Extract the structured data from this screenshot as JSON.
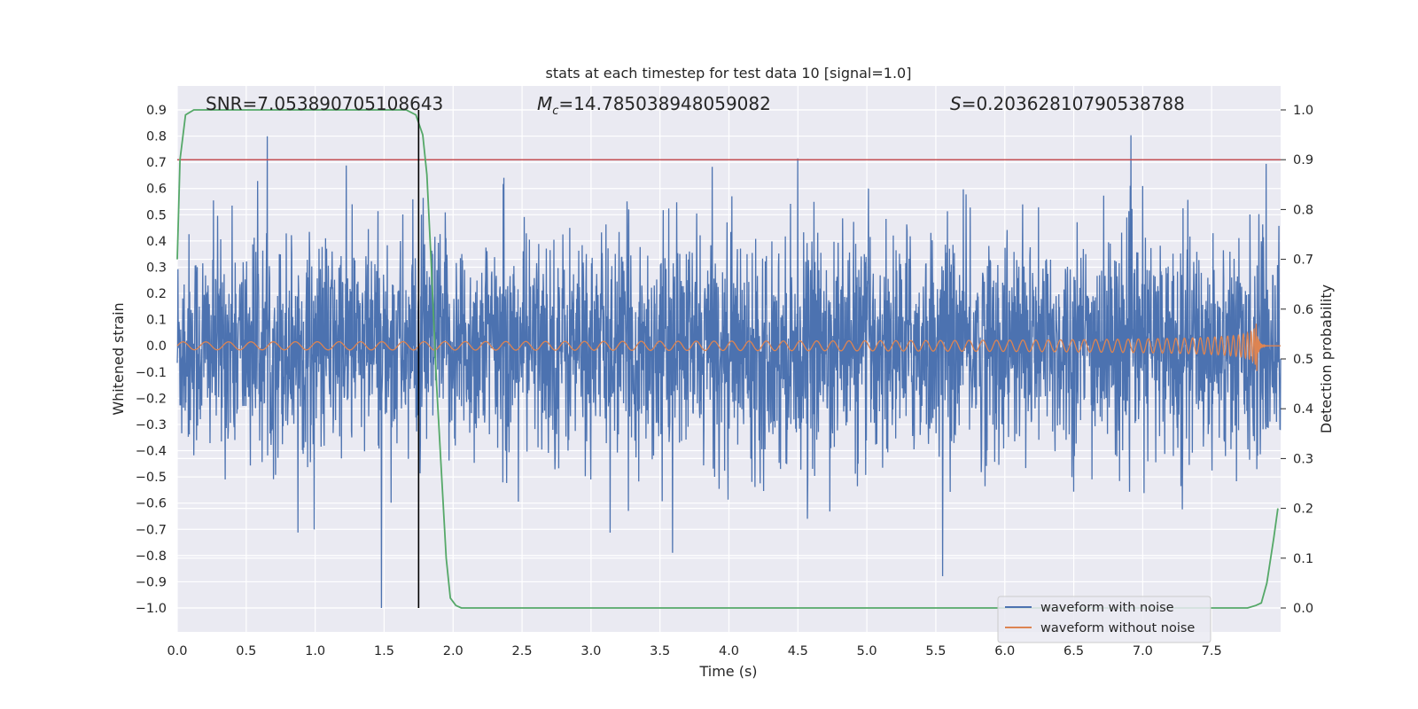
{
  "chart_data": {
    "type": "line",
    "title": "stats at each timestep for test data 10 [signal=1.0]",
    "xlabel": "Time (s)",
    "ylabel": "Whitened strain",
    "y2label": "Detection probability",
    "xlim": [
      0.0,
      8.0
    ],
    "ylim": [
      -1.0,
      0.9
    ],
    "y2lim": [
      0.0,
      1.0
    ],
    "x_ticks": [
      "0.0",
      "0.5",
      "1.0",
      "1.5",
      "2.0",
      "2.5",
      "3.0",
      "3.5",
      "4.0",
      "4.5",
      "5.0",
      "5.5",
      "6.0",
      "6.5",
      "7.0",
      "7.5"
    ],
    "y_ticks": [
      "−1.0",
      "−0.9",
      "−0.8",
      "−0.7",
      "−0.6",
      "−0.5",
      "−0.4",
      "−0.3",
      "−0.2",
      "−0.1",
      "0.0",
      "0.1",
      "0.2",
      "0.3",
      "0.4",
      "0.5",
      "0.6",
      "0.7",
      "0.8",
      "0.9"
    ],
    "y2_ticks": [
      "0.0",
      "0.1",
      "0.2",
      "0.3",
      "0.4",
      "0.5",
      "0.6",
      "0.7",
      "0.8",
      "0.9",
      "1.0"
    ],
    "grid": true,
    "legend_position": "lower-right",
    "annotations": {
      "snr": "SNR=7.053890705108643",
      "mc_symbol": "M",
      "mc_subscript": "c",
      "mc_value": "=14.785038948059082",
      "s_symbol": "S",
      "s_value": "=0.20362810790538788"
    },
    "series": [
      {
        "name": "waveform with noise",
        "color": "#4c72b0",
        "axis": "left",
        "kind": "noise",
        "envelope": 0.45,
        "max": 0.9,
        "min": -1.0
      },
      {
        "name": "waveform without noise",
        "color": "#dd8452",
        "axis": "left",
        "kind": "chirp",
        "merger_time": 7.83,
        "peak_positive": 0.4,
        "peak_negative": -0.31,
        "early_amplitude": 0.015
      },
      {
        "color": "#55a868",
        "axis": "right",
        "kind": "probability",
        "x": [
          0.0,
          0.02,
          0.06,
          0.12,
          0.2,
          0.5,
          1.0,
          1.5,
          1.66,
          1.73,
          1.78,
          1.81,
          1.84,
          1.88,
          1.92,
          1.95,
          1.98,
          2.02,
          2.06,
          2.1,
          3.0,
          4.0,
          5.0,
          6.0,
          7.0,
          7.5,
          7.7,
          7.76,
          7.82,
          7.86,
          7.9,
          7.95,
          7.98
        ],
        "y": [
          0.7,
          0.9,
          0.99,
          1.0,
          1.0,
          1.0,
          1.0,
          1.0,
          1.0,
          0.99,
          0.95,
          0.87,
          0.7,
          0.45,
          0.25,
          0.1,
          0.02,
          0.005,
          0.0,
          0.0,
          0.0,
          0.0,
          0.0,
          0.0,
          0.0,
          0.0,
          0.0,
          0.0,
          0.005,
          0.01,
          0.05,
          0.14,
          0.2
        ]
      },
      {
        "color": "#c44e52",
        "axis": "right",
        "kind": "threshold",
        "value": 0.9
      },
      {
        "color": "#000000",
        "axis": "left",
        "kind": "vline",
        "x": 1.75,
        "y_from": -1.0,
        "y_to": 0.9
      }
    ]
  }
}
